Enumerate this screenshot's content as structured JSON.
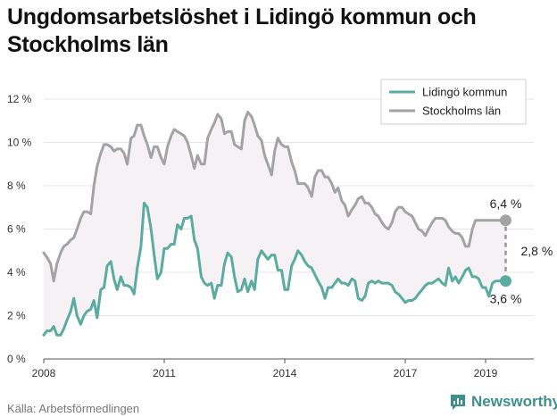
{
  "title": "Ungdomsarbetslöshet i Lidingö kommun och Stockholms län",
  "source": "Källa: Arbetsförmedlingen",
  "brand": "Newsworthy",
  "colors": {
    "lidingo": "#5aaba0",
    "stockholm": "#a3a3a3",
    "band": "#f6f1f4",
    "grid": "#e4e4e4",
    "brand": "#3d8f8c"
  },
  "icons": {
    "brand": "newsworthy-logo-icon"
  },
  "chart_data": {
    "type": "line",
    "xlabel": "",
    "ylabel": "",
    "xlim": [
      2008,
      2020.2
    ],
    "ylim": [
      0,
      12
    ],
    "x_ticks": [
      2008,
      2011,
      2014,
      2017,
      2019
    ],
    "x_tick_labels": [
      "2008",
      "2011",
      "2014",
      "2017",
      "2019"
    ],
    "y_ticks": [
      0,
      2,
      4,
      6,
      8,
      10,
      12
    ],
    "y_tick_labels": [
      "0 %",
      "2 %",
      "4 %",
      "6 %",
      "8 %",
      "10 %",
      "12 %"
    ],
    "grid": true,
    "legend_position": "top-right",
    "series": [
      {
        "name": "Lidingö kommun",
        "x": [
          2008.0,
          2008.08,
          2008.17,
          2008.25,
          2008.33,
          2008.42,
          2008.5,
          2008.58,
          2008.67,
          2008.75,
          2008.83,
          2008.92,
          2009.0,
          2009.08,
          2009.17,
          2009.25,
          2009.33,
          2009.42,
          2009.5,
          2009.58,
          2009.67,
          2009.75,
          2009.83,
          2009.92,
          2010.0,
          2010.08,
          2010.17,
          2010.25,
          2010.33,
          2010.42,
          2010.5,
          2010.58,
          2010.67,
          2010.75,
          2010.83,
          2010.92,
          2011.0,
          2011.08,
          2011.17,
          2011.25,
          2011.33,
          2011.42,
          2011.5,
          2011.58,
          2011.67,
          2011.75,
          2011.83,
          2011.92,
          2012.0,
          2012.08,
          2012.17,
          2012.25,
          2012.33,
          2012.42,
          2012.5,
          2012.58,
          2012.67,
          2012.75,
          2012.83,
          2012.92,
          2013.0,
          2013.08,
          2013.17,
          2013.25,
          2013.33,
          2013.42,
          2013.5,
          2013.58,
          2013.67,
          2013.75,
          2013.83,
          2013.92,
          2014.0,
          2014.08,
          2014.17,
          2014.25,
          2014.33,
          2014.42,
          2014.5,
          2014.58,
          2014.67,
          2014.75,
          2014.83,
          2014.92,
          2015.0,
          2015.08,
          2015.17,
          2015.25,
          2015.33,
          2015.42,
          2015.5,
          2015.58,
          2015.67,
          2015.75,
          2015.83,
          2015.92,
          2016.0,
          2016.08,
          2016.17,
          2016.25,
          2016.33,
          2016.42,
          2016.5,
          2016.58,
          2016.67,
          2016.75,
          2016.83,
          2016.92,
          2017.0,
          2017.08,
          2017.17,
          2017.25,
          2017.33,
          2017.42,
          2017.5,
          2017.58,
          2017.67,
          2017.75,
          2017.83,
          2017.92,
          2018.0,
          2018.08,
          2018.17,
          2018.25,
          2018.33,
          2018.42,
          2018.5,
          2018.58,
          2018.67,
          2018.75,
          2018.83,
          2018.92,
          2019.0,
          2019.08,
          2019.17,
          2019.25,
          2019.33,
          2019.42,
          2019.5
        ],
        "values": [
          1.1,
          1.3,
          1.3,
          1.5,
          1.1,
          1.1,
          1.4,
          1.8,
          2.2,
          2.8,
          2.0,
          1.6,
          2.0,
          2.2,
          2.3,
          2.7,
          1.9,
          3.2,
          3.3,
          4.3,
          4.5,
          3.7,
          3.2,
          3.8,
          3.4,
          3.4,
          3.3,
          3.0,
          4.2,
          5.2,
          7.2,
          7.0,
          6.0,
          4.8,
          3.7,
          4.0,
          5.1,
          5.1,
          5.3,
          5.3,
          6.2,
          6.0,
          6.5,
          6.5,
          6.6,
          5.5,
          5.1,
          3.8,
          3.5,
          3.4,
          3.5,
          2.8,
          3.4,
          3.4,
          4.4,
          4.9,
          4.7,
          3.8,
          3.1,
          3.2,
          3.7,
          3.1,
          3.6,
          3.2,
          4.6,
          5.0,
          4.8,
          4.6,
          4.8,
          4.8,
          4.1,
          4.1,
          3.2,
          3.2,
          4.3,
          4.6,
          5.0,
          4.8,
          4.5,
          4.3,
          4.2,
          3.9,
          3.6,
          3.3,
          2.8,
          3.3,
          3.3,
          3.5,
          3.7,
          3.5,
          3.5,
          3.4,
          3.7,
          3.6,
          2.8,
          2.7,
          2.9,
          3.5,
          3.6,
          3.5,
          3.6,
          3.5,
          3.5,
          3.5,
          3.4,
          3.1,
          3.0,
          2.8,
          2.6,
          2.7,
          2.7,
          2.8,
          3.0,
          3.2,
          3.4,
          3.5,
          3.5,
          3.6,
          3.7,
          3.5,
          3.4,
          4.2,
          3.6,
          3.8,
          3.5,
          3.8,
          4.1,
          4.2,
          3.8,
          3.8,
          3.7,
          3.3,
          3.3,
          2.9,
          3.5,
          3.6,
          3.6,
          3.6,
          3.6
        ],
        "end_label": "3,6 %"
      },
      {
        "name": "Stockholms län",
        "x": [
          2008.0,
          2008.08,
          2008.17,
          2008.25,
          2008.33,
          2008.42,
          2008.5,
          2008.58,
          2008.67,
          2008.75,
          2008.83,
          2008.92,
          2009.0,
          2009.08,
          2009.17,
          2009.25,
          2009.33,
          2009.42,
          2009.5,
          2009.58,
          2009.67,
          2009.75,
          2009.83,
          2009.92,
          2010.0,
          2010.08,
          2010.17,
          2010.25,
          2010.33,
          2010.42,
          2010.5,
          2010.58,
          2010.67,
          2010.75,
          2010.83,
          2010.92,
          2011.0,
          2011.08,
          2011.17,
          2011.25,
          2011.33,
          2011.42,
          2011.5,
          2011.58,
          2011.67,
          2011.75,
          2011.83,
          2011.92,
          2012.0,
          2012.08,
          2012.17,
          2012.25,
          2012.33,
          2012.42,
          2012.5,
          2012.58,
          2012.67,
          2012.75,
          2012.83,
          2012.92,
          2013.0,
          2013.08,
          2013.17,
          2013.25,
          2013.33,
          2013.42,
          2013.5,
          2013.58,
          2013.67,
          2013.75,
          2013.83,
          2013.92,
          2014.0,
          2014.08,
          2014.17,
          2014.25,
          2014.33,
          2014.42,
          2014.5,
          2014.58,
          2014.67,
          2014.75,
          2014.83,
          2014.92,
          2015.0,
          2015.08,
          2015.17,
          2015.25,
          2015.33,
          2015.42,
          2015.5,
          2015.58,
          2015.67,
          2015.75,
          2015.83,
          2015.92,
          2016.0,
          2016.08,
          2016.17,
          2016.25,
          2016.33,
          2016.42,
          2016.5,
          2016.58,
          2016.67,
          2016.75,
          2016.83,
          2016.92,
          2017.0,
          2017.08,
          2017.17,
          2017.25,
          2017.33,
          2017.42,
          2017.5,
          2017.58,
          2017.67,
          2017.75,
          2017.83,
          2017.92,
          2018.0,
          2018.08,
          2018.17,
          2018.25,
          2018.33,
          2018.42,
          2018.5,
          2018.58,
          2018.67,
          2018.75,
          2018.83,
          2018.92,
          2019.0,
          2019.08,
          2019.17,
          2019.25,
          2019.33,
          2019.42,
          2019.5
        ],
        "values": [
          4.9,
          4.7,
          4.4,
          3.6,
          4.4,
          4.9,
          5.2,
          5.3,
          5.5,
          5.6,
          6.0,
          6.5,
          6.8,
          6.8,
          6.7,
          8.0,
          8.9,
          9.5,
          9.9,
          9.9,
          9.8,
          9.6,
          9.7,
          9.7,
          9.5,
          9.0,
          10.2,
          10.3,
          10.8,
          10.8,
          10.3,
          9.9,
          9.3,
          9.8,
          9.8,
          9.3,
          9.0,
          9.8,
          10.3,
          10.6,
          10.5,
          10.4,
          10.3,
          10.0,
          9.4,
          8.8,
          9.4,
          9.0,
          9.0,
          10.2,
          10.6,
          10.9,
          11.3,
          11.1,
          10.4,
          10.5,
          10.5,
          9.9,
          9.8,
          9.7,
          11.0,
          11.4,
          11.2,
          10.8,
          10.3,
          10.1,
          9.4,
          9.0,
          8.5,
          9.6,
          10.2,
          9.9,
          9.8,
          9.8,
          9.1,
          8.7,
          8.1,
          8.1,
          8.1,
          7.9,
          7.5,
          8.4,
          8.7,
          8.7,
          8.4,
          8.4,
          8.1,
          7.7,
          7.9,
          7.3,
          7.1,
          6.6,
          6.9,
          7.1,
          7.4,
          7.5,
          7.2,
          7.2,
          7.0,
          6.7,
          6.6,
          6.3,
          6.1,
          6.0,
          6.3,
          6.8,
          7.0,
          7.0,
          6.8,
          6.7,
          6.6,
          6.3,
          6.0,
          5.9,
          5.7,
          6.0,
          6.3,
          6.5,
          6.5,
          6.5,
          6.4,
          6.1,
          5.9,
          5.8,
          5.8,
          5.6,
          5.2,
          5.2,
          6.0,
          6.4,
          6.4,
          6.4,
          6.4,
          6.4,
          6.4,
          6.4,
          6.4,
          6.4,
          6.4
        ],
        "end_label": "6,4 %"
      }
    ],
    "difference_label": "2,8 %"
  }
}
